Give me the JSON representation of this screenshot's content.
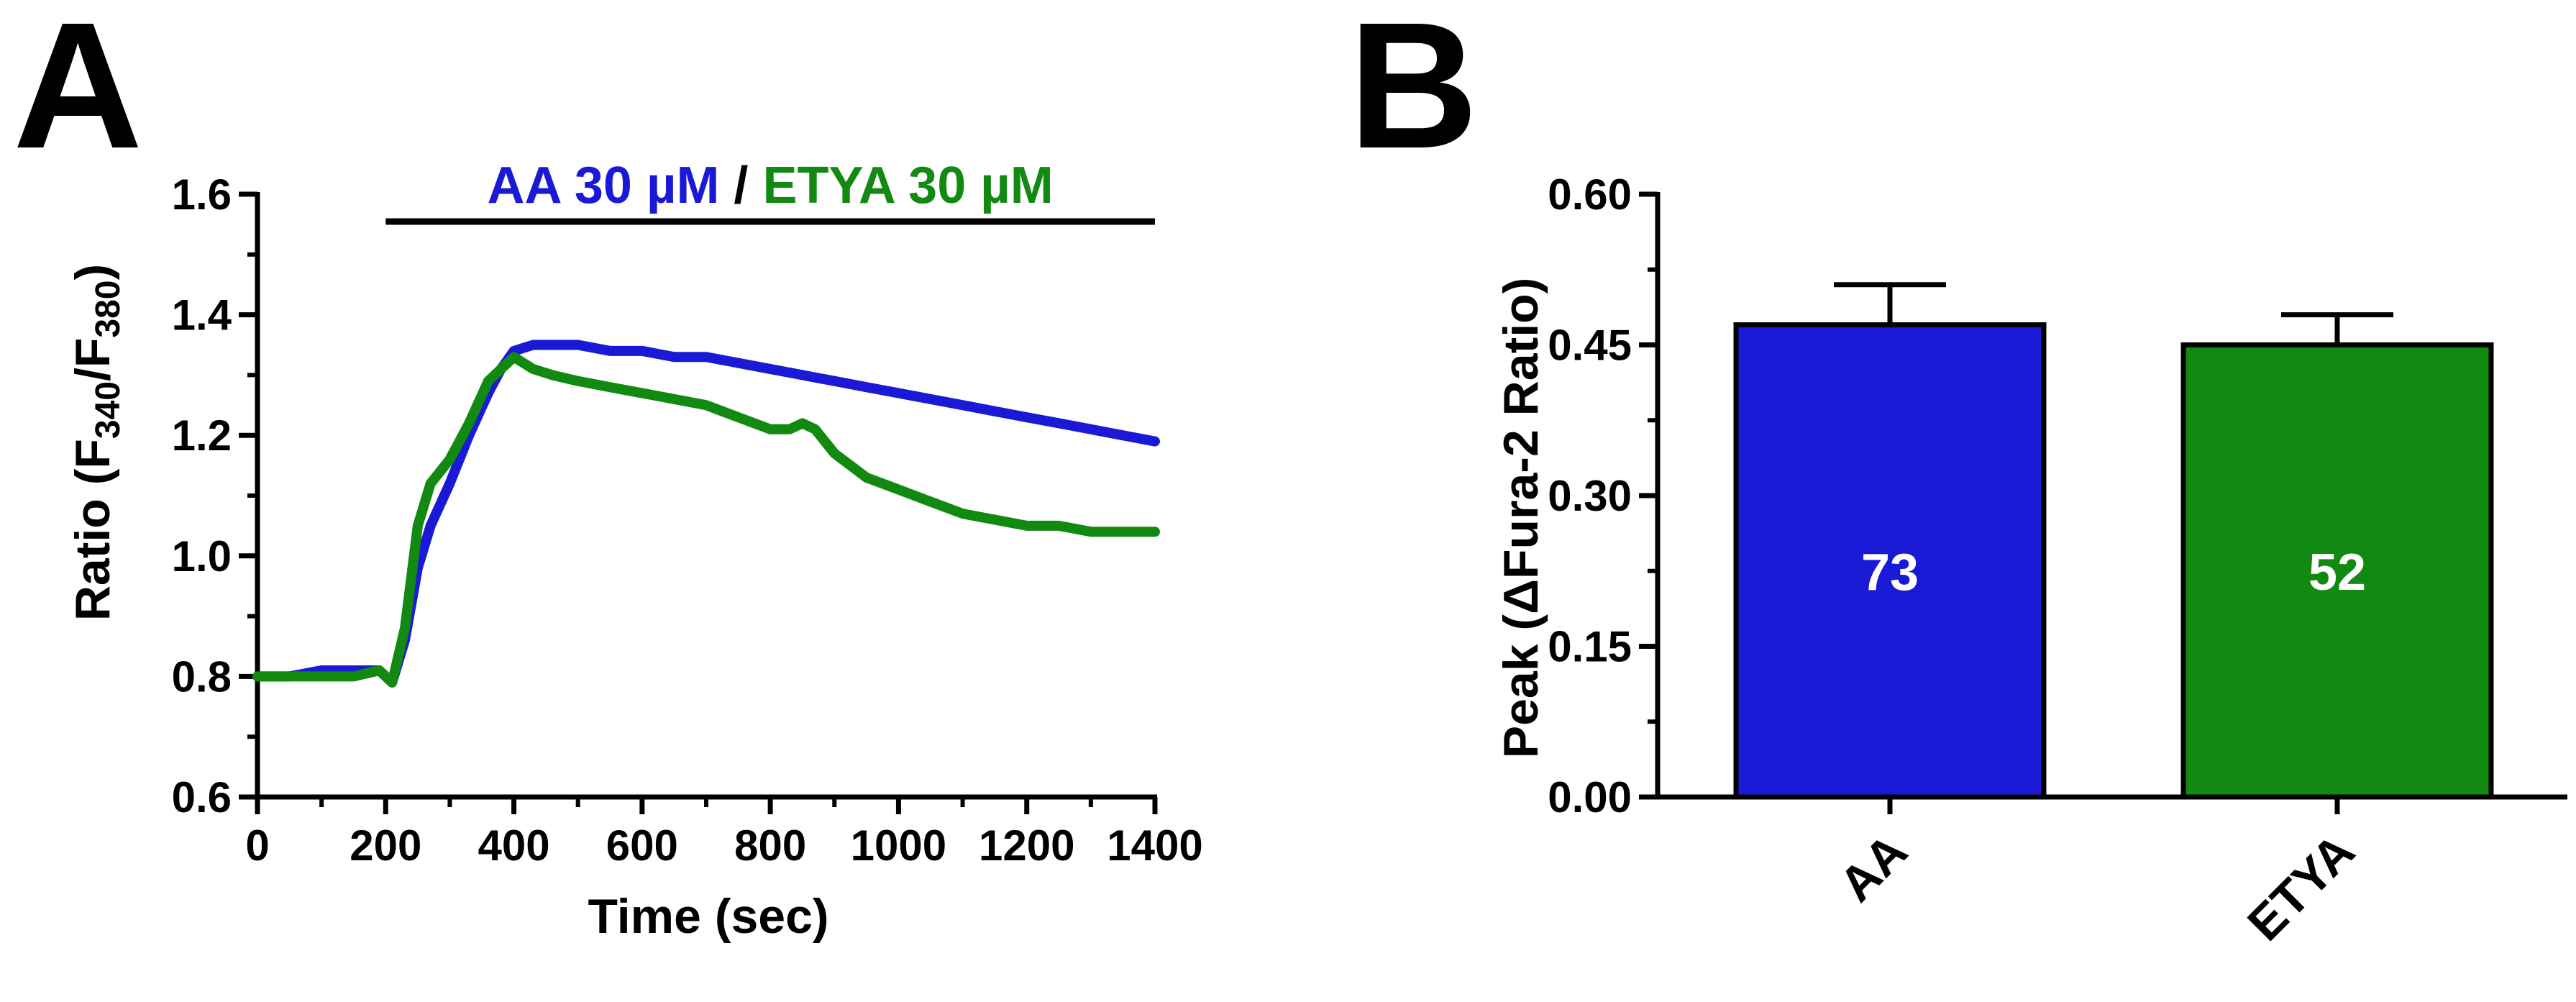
{
  "panels": {
    "a": "A",
    "b": "B"
  },
  "chart_data": [
    {
      "type": "line",
      "panel": "A",
      "ylabel": {
        "pre": "Ratio (F",
        "sub1": "340",
        "mid": "/F",
        "sub2": "380",
        "post": ")"
      },
      "xlabel": "Time (sec)",
      "xlim": [
        0,
        1400
      ],
      "ylim": [
        0.6,
        1.6
      ],
      "xticks": [
        0,
        200,
        400,
        600,
        800,
        1000,
        1200,
        1400
      ],
      "yticks": [
        "0.6",
        "0.8",
        "1.0",
        "1.2",
        "1.4",
        "1.6"
      ],
      "stimulus": {
        "start": 200,
        "end": 1400,
        "label_aa": "AA 30 µM",
        "label_sep": " / ",
        "label_etya": "ETYA 30 µM"
      },
      "series": [
        {
          "name": "AA 30 µM",
          "color": "#1a1ad6",
          "x": [
            0,
            50,
            100,
            150,
            190,
            210,
            230,
            250,
            270,
            300,
            330,
            360,
            380,
            400,
            430,
            460,
            500,
            550,
            600,
            650,
            700,
            750,
            800,
            850,
            900,
            950,
            1000,
            1050,
            1100,
            1150,
            1200,
            1250,
            1300,
            1350,
            1400
          ],
          "y": [
            0.8,
            0.8,
            0.81,
            0.81,
            0.81,
            0.79,
            0.86,
            0.98,
            1.05,
            1.12,
            1.2,
            1.27,
            1.31,
            1.34,
            1.35,
            1.35,
            1.35,
            1.34,
            1.34,
            1.33,
            1.33,
            1.32,
            1.31,
            1.3,
            1.29,
            1.28,
            1.27,
            1.26,
            1.25,
            1.24,
            1.23,
            1.22,
            1.21,
            1.2,
            1.19
          ]
        },
        {
          "name": "ETYA 30 µM",
          "color": "#128a12",
          "x": [
            0,
            50,
            100,
            150,
            190,
            210,
            230,
            250,
            270,
            300,
            330,
            360,
            380,
            400,
            430,
            460,
            500,
            550,
            600,
            650,
            700,
            750,
            800,
            830,
            850,
            870,
            900,
            950,
            1000,
            1050,
            1100,
            1150,
            1200,
            1250,
            1300,
            1350,
            1400
          ],
          "y": [
            0.8,
            0.8,
            0.8,
            0.8,
            0.81,
            0.79,
            0.88,
            1.05,
            1.12,
            1.16,
            1.22,
            1.29,
            1.31,
            1.33,
            1.31,
            1.3,
            1.29,
            1.28,
            1.27,
            1.26,
            1.25,
            1.23,
            1.21,
            1.21,
            1.22,
            1.21,
            1.17,
            1.13,
            1.11,
            1.09,
            1.07,
            1.06,
            1.05,
            1.05,
            1.04,
            1.04,
            1.04
          ]
        }
      ]
    },
    {
      "type": "bar",
      "panel": "B",
      "ylabel": "Peak (ΔFura-2 Ratio)",
      "ylim": [
        0,
        0.6
      ],
      "yticks": [
        "0.00",
        "0.15",
        "0.30",
        "0.45",
        "0.60"
      ],
      "categories": [
        "AA",
        "ETYA"
      ],
      "values": [
        0.47,
        0.45
      ],
      "errors": [
        0.04,
        0.03
      ],
      "n_labels": [
        "73",
        "52"
      ],
      "colors": [
        "#1a1ad6",
        "#128a12"
      ]
    }
  ]
}
